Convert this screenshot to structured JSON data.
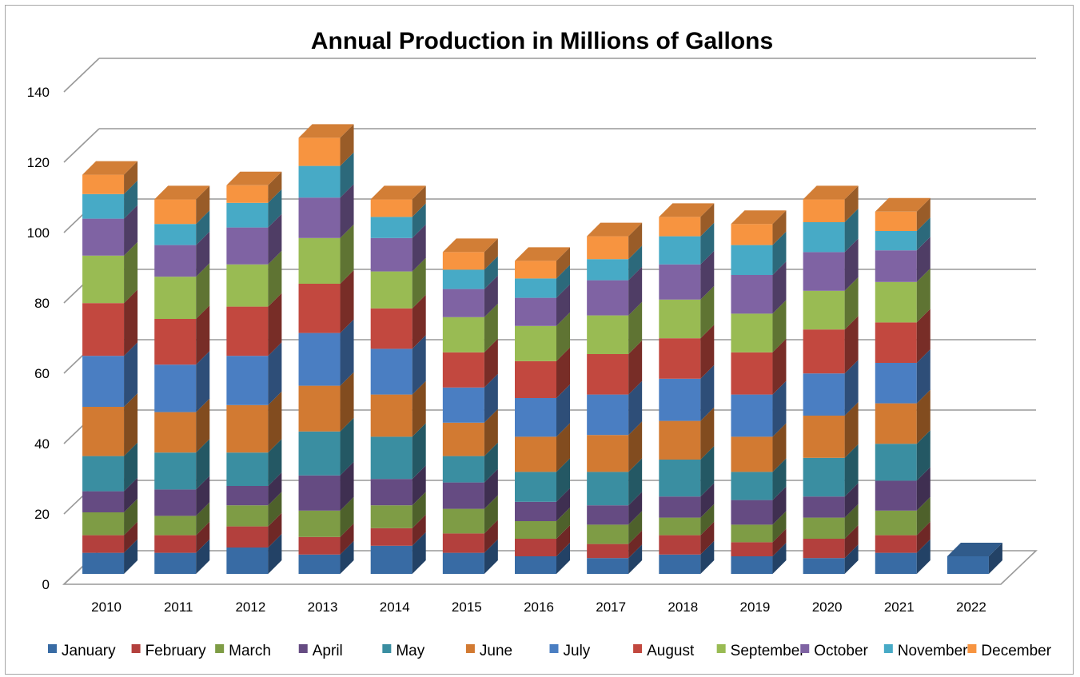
{
  "chart_data": {
    "type": "bar",
    "stacked": true,
    "three_d": true,
    "title": "Annual Production in Millions of Gallons",
    "xlabel": "",
    "ylabel": "",
    "ylim": [
      0,
      140
    ],
    "y_ticks": [
      0,
      20,
      40,
      60,
      80,
      100,
      120,
      140
    ],
    "grid": true,
    "legend_position": "bottom",
    "categories": [
      "2010",
      "2011",
      "2012",
      "2013",
      "2014",
      "2015",
      "2016",
      "2017",
      "2018",
      "2019",
      "2020",
      "2021",
      "2022"
    ],
    "series": [
      {
        "name": "January",
        "color": "#386ba4",
        "values": [
          6,
          6,
          7.5,
          5.5,
          8,
          6,
          5,
          4.5,
          5.5,
          5,
          4.5,
          6,
          5
        ]
      },
      {
        "name": "February",
        "color": "#b3403d",
        "values": [
          5,
          5,
          6,
          5,
          5,
          5.5,
          5,
          4,
          5.5,
          4,
          5.5,
          5,
          0
        ]
      },
      {
        "name": "March",
        "color": "#7e9c45",
        "values": [
          6.5,
          5.5,
          6,
          7.5,
          6.5,
          7,
          5,
          5.5,
          5,
          5,
          6,
          7,
          0
        ]
      },
      {
        "name": "April",
        "color": "#654b82",
        "values": [
          6,
          7.5,
          5.5,
          10,
          7.5,
          7.5,
          5.5,
          5.5,
          6,
          7,
          6,
          8.5,
          0
        ]
      },
      {
        "name": "May",
        "color": "#3a8ea1",
        "values": [
          10,
          10.5,
          9.5,
          12.5,
          12,
          7.5,
          8.5,
          9.5,
          10.5,
          8,
          11,
          10.5,
          0
        ]
      },
      {
        "name": "June",
        "color": "#d27a32",
        "values": [
          14,
          11.5,
          13.5,
          13,
          12,
          9.5,
          10,
          10.5,
          11,
          10,
          12,
          11.5,
          0
        ]
      },
      {
        "name": "July",
        "color": "#4a7ec2",
        "values": [
          14.5,
          13.5,
          14,
          15,
          13,
          10,
          11,
          11.5,
          12,
          12,
          12,
          11.5,
          0
        ]
      },
      {
        "name": "August",
        "color": "#c2483f",
        "values": [
          15,
          13,
          14,
          14,
          11.5,
          10,
          10.5,
          11.5,
          11.5,
          12,
          12.5,
          11.5,
          0
        ]
      },
      {
        "name": "September",
        "color": "#99bb53",
        "values": [
          13.5,
          12,
          12,
          13,
          10.5,
          10,
          10,
          11,
          11,
          11,
          11,
          11.5,
          0
        ]
      },
      {
        "name": "October",
        "color": "#7f63a3",
        "values": [
          10.5,
          9,
          10.5,
          11.5,
          9.5,
          8,
          8,
          10,
          10,
          11,
          11,
          9,
          0
        ]
      },
      {
        "name": "November",
        "color": "#47aac6",
        "values": [
          7,
          6,
          7,
          9,
          6,
          5.5,
          5.5,
          6,
          8,
          8.5,
          8.5,
          5.5,
          0
        ]
      },
      {
        "name": "December",
        "color": "#f79440",
        "values": [
          5.5,
          7,
          5,
          8,
          5,
          5,
          5,
          6.5,
          5.5,
          6,
          6.5,
          5.5,
          0
        ]
      }
    ]
  }
}
